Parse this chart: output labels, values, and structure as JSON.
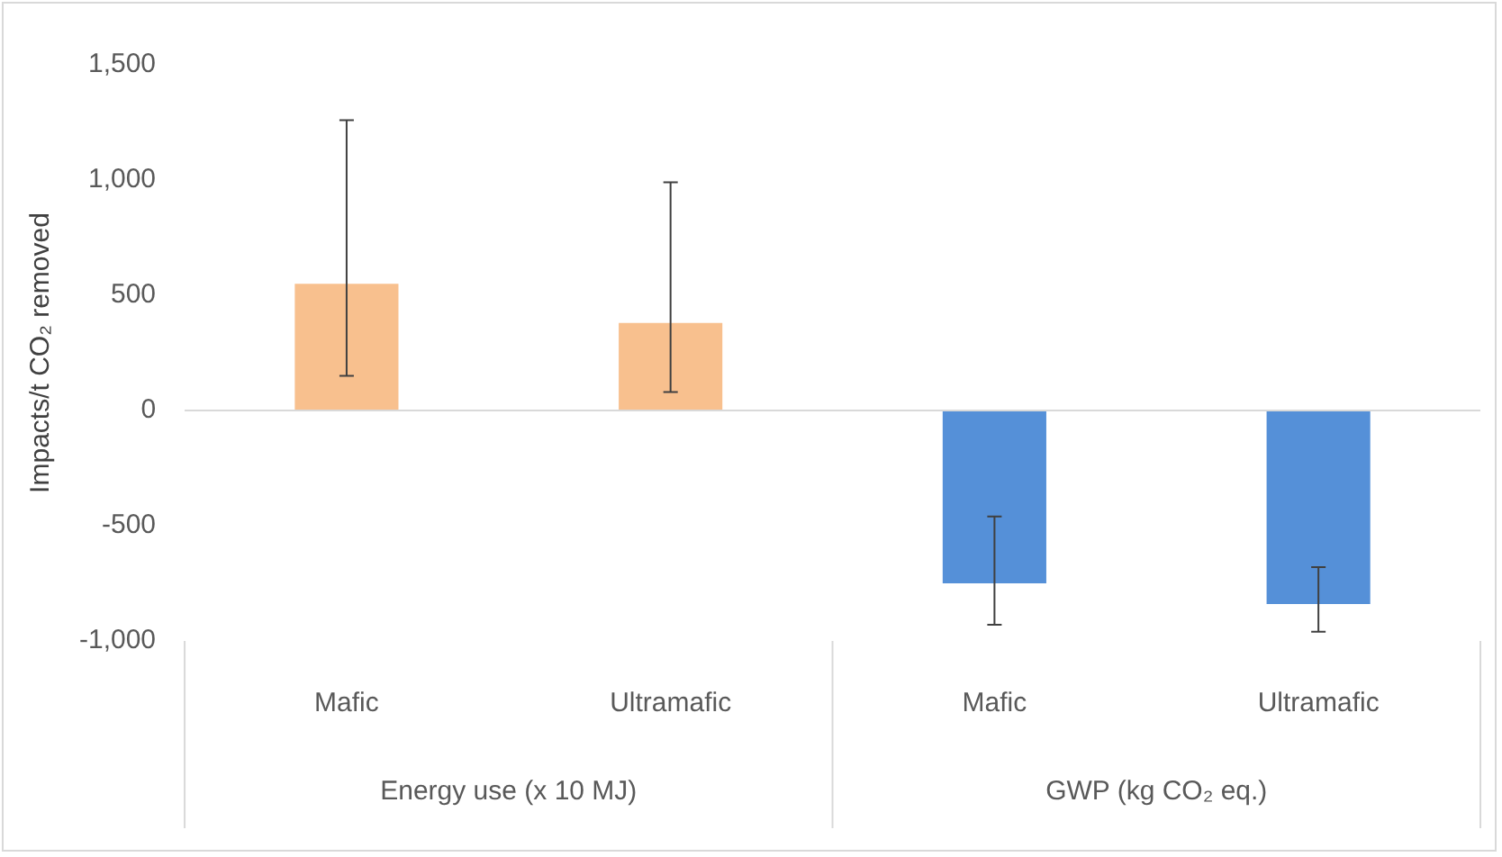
{
  "chart_data": {
    "type": "bar",
    "ylabel": "Impacts/t CO₂ removed",
    "categories": [
      "Mafic",
      "Ultramafic",
      "Mafic",
      "Ultramafic"
    ],
    "values": [
      550,
      380,
      -750,
      -840
    ],
    "colors": [
      "#f8c08e",
      "#f8c08e",
      "#5590d8",
      "#5590d8"
    ],
    "errors": [
      [
        150,
        1260
      ],
      [
        80,
        990
      ],
      [
        -930,
        -460
      ],
      [
        -960,
        -680
      ]
    ],
    "ylim": [
      -1000,
      1500
    ],
    "yticks": [
      {
        "value": -1000,
        "label": "-1,000"
      },
      -500,
      0,
      500,
      {
        "value": 1000,
        "label": "1,000"
      },
      {
        "value": 1500,
        "label": "1,500"
      }
    ],
    "grid": false,
    "legend": false,
    "ref_lines": [
      {
        "axis": "y",
        "value": 0,
        "color": "#d9d9d9"
      }
    ],
    "annotations": [
      "Energy use (x 10 MJ)",
      "GWP (kg CO₂ eq.)"
    ]
  }
}
